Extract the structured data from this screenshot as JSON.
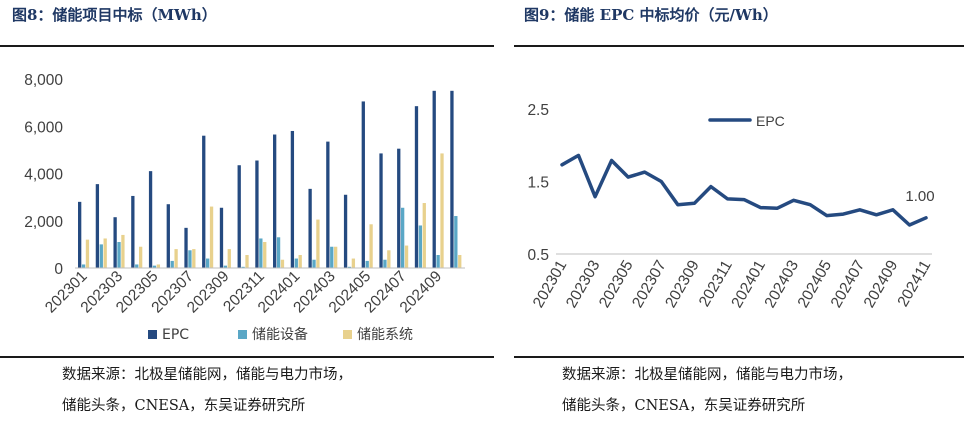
{
  "figures": {
    "left": {
      "title": "图8：储能项目中标（MWh）",
      "source_line1": "数据来源：北极星储能网，储能与电力市场，",
      "source_line2": "储能头条，CNESA，东吴证券研究所"
    },
    "right": {
      "title": "图9：储能 EPC 中标均价（元/Wh）",
      "source_line1": "数据来源：北极星储能网，储能与电力市场，",
      "source_line2": "储能头条，CNESA，东吴证券研究所"
    }
  },
  "chart_data": [
    {
      "type": "bar",
      "title": "图8：储能项目中标（MWh）",
      "categories": [
        "202301",
        "202302",
        "202303",
        "202304",
        "202305",
        "202306",
        "202307",
        "202308",
        "202309",
        "202310",
        "202311",
        "202312",
        "202401",
        "202402",
        "202403",
        "202404",
        "202405",
        "202406",
        "202407",
        "202408",
        "202409",
        "202410"
      ],
      "tick_labels": [
        "202301",
        "202303",
        "202305",
        "202307",
        "202309",
        "202311",
        "202401",
        "202403",
        "202405",
        "202407",
        "202409"
      ],
      "series": [
        {
          "name": "EPC",
          "color": "#254a80",
          "values": [
            2800,
            3550,
            2150,
            3050,
            4100,
            2700,
            1700,
            5600,
            2550,
            4350,
            4550,
            5650,
            5800,
            3350,
            5350,
            3100,
            7050,
            4850,
            5050,
            6850,
            7500,
            7500
          ]
        },
        {
          "name": "储能设备",
          "color": "#5aa7c6",
          "values": [
            150,
            1000,
            1100,
            150,
            100,
            300,
            750,
            400,
            100,
            50,
            1250,
            1300,
            400,
            350,
            900,
            50,
            300,
            350,
            2550,
            1800,
            550,
            2200
          ]
        },
        {
          "name": "储能系统",
          "color": "#e8d18d",
          "values": [
            1200,
            1250,
            1400,
            900,
            150,
            800,
            800,
            2600,
            800,
            550,
            1100,
            350,
            550,
            2050,
            900,
            400,
            1850,
            750,
            950,
            2750,
            4850,
            550
          ]
        }
      ],
      "ylim": [
        0,
        8000
      ],
      "yticks": [
        "0",
        "2,000",
        "4,000",
        "6,000",
        "8,000"
      ],
      "legend_position": "bottom"
    },
    {
      "type": "line",
      "title": "图9：储能 EPC 中标均价（元/Wh）",
      "x": [
        "202301",
        "202302",
        "202303",
        "202304",
        "202305",
        "202306",
        "202307",
        "202308",
        "202309",
        "202310",
        "202311",
        "202312",
        "202401",
        "202402",
        "202403",
        "202404",
        "202405",
        "202406",
        "202407",
        "202408",
        "202409",
        "202410",
        "202411"
      ],
      "tick_labels": [
        "202301",
        "202303",
        "202305",
        "202307",
        "202309",
        "202311",
        "202401",
        "202403",
        "202405",
        "202407",
        "202409",
        "202411"
      ],
      "series": [
        {
          "name": "EPC",
          "color": "#254a80",
          "values": [
            1.73,
            1.86,
            1.29,
            1.79,
            1.56,
            1.63,
            1.5,
            1.18,
            1.2,
            1.43,
            1.26,
            1.25,
            1.14,
            1.13,
            1.24,
            1.18,
            1.03,
            1.05,
            1.11,
            1.04,
            1.11,
            0.9,
            1.0
          ]
        }
      ],
      "ylim": [
        0.5,
        2.9
      ],
      "yticks": [
        "0.5",
        "1.5",
        "2.5"
      ],
      "data_label": "1.00",
      "legend_position": "top-left"
    }
  ]
}
